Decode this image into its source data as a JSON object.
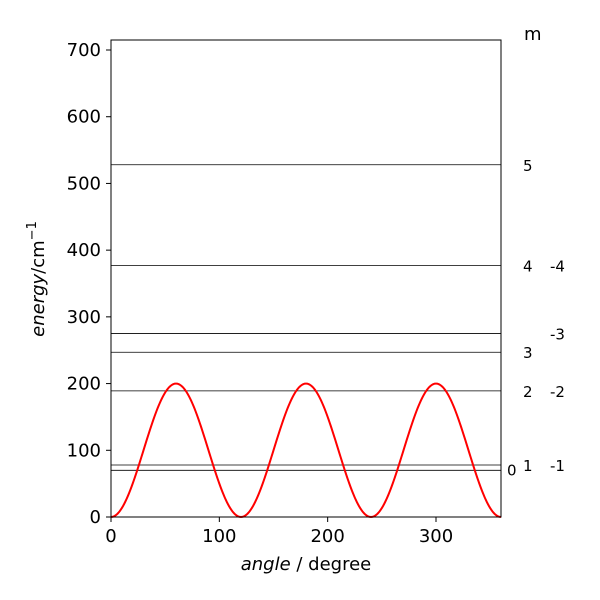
{
  "chart_data": {
    "type": "line",
    "xlabel_italic": "angle",
    "xlabel_rest": " / degree",
    "ylabel_italic": "energy",
    "ylabel_rest": "/cm",
    "ylabel_sup": "−1",
    "xlim": [
      0,
      360
    ],
    "ylim": [
      0,
      715
    ],
    "x_ticks": [
      0,
      100,
      200,
      300
    ],
    "y_ticks": [
      0,
      100,
      200,
      300,
      400,
      500,
      600,
      700
    ],
    "potential": {
      "amplitude": 200,
      "period_deg": 120,
      "color": "#ff0000"
    },
    "energy_levels": [
      {
        "energy": 70,
        "label": "0"
      },
      {
        "energy": 78,
        "label_m_pos": "1",
        "label_m_neg": "-1"
      },
      {
        "energy": 189,
        "label_m_pos": "2",
        "label_m_neg": "-2"
      },
      {
        "energy": 247,
        "label_m_pos": "3",
        "label_m_neg": ""
      },
      {
        "energy": 275,
        "label_m_pos": "",
        "label_m_neg": "-3"
      },
      {
        "energy": 377,
        "label_m_pos": "4",
        "label_m_neg": "-4"
      },
      {
        "energy": 528,
        "label_m_pos": "5",
        "label_m_neg": ""
      }
    ],
    "m_header": "m",
    "grid": false
  }
}
